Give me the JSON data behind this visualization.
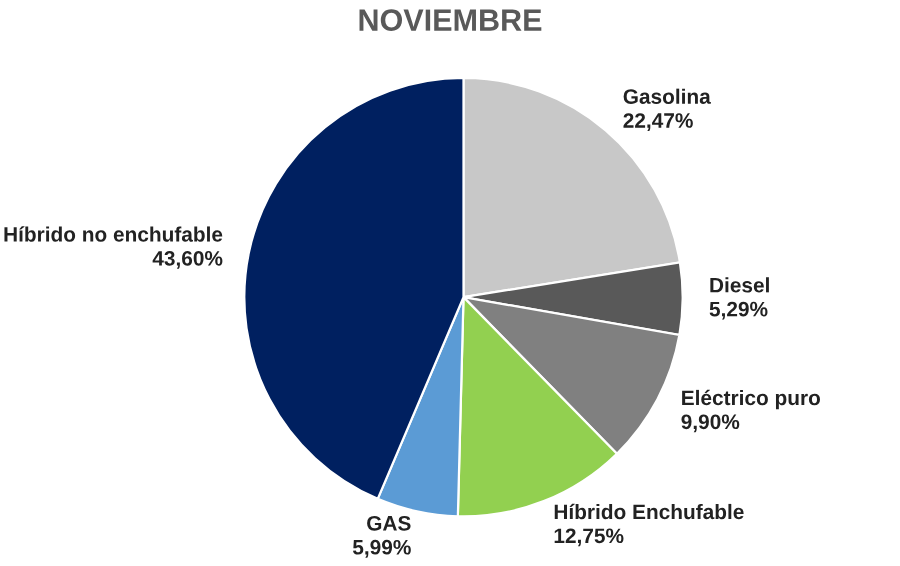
{
  "chart_data": {
    "type": "pie",
    "title": "NOVIEMBRE",
    "categories": [
      "Gasolina",
      "Diesel",
      "Eléctrico puro",
      "Híbrido Enchufable",
      "GAS",
      "Híbrido no enchufable"
    ],
    "values": [
      22.47,
      5.29,
      9.9,
      12.75,
      5.99,
      43.6
    ],
    "value_labels": [
      "22,47%",
      "5,29%",
      "9,90%",
      "12,75%",
      "5,99%",
      "43,60%"
    ],
    "colors": [
      "#c8c8c8",
      "#595959",
      "#808080",
      "#92d050",
      "#5b9bd5",
      "#002060"
    ],
    "legend": false
  }
}
